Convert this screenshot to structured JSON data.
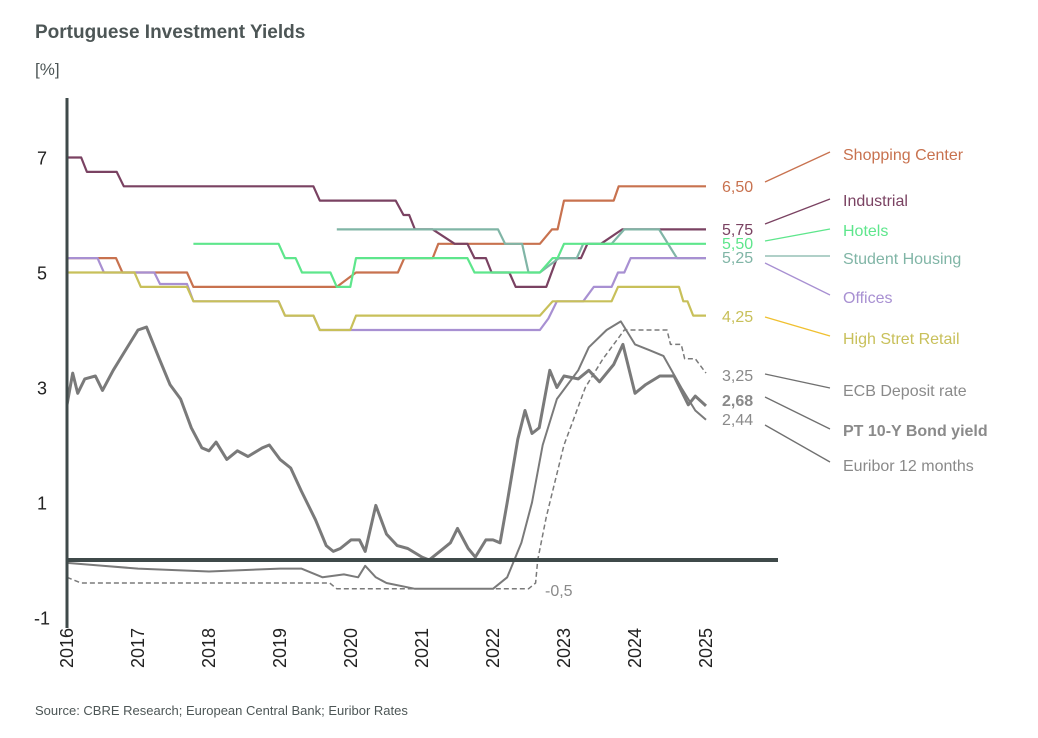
{
  "title": "Portuguese Investment Yields",
  "unit": "[%]",
  "source": "Source: CBRE Research; European Central Bank; Euribor Rates",
  "chart_data": {
    "type": "line",
    "title": "Portuguese Investment Yields",
    "ylabel": "[%]",
    "xlim": [
      2016,
      2025
    ],
    "ylim": [
      -1,
      8
    ],
    "y_ticks": [
      "7",
      "5",
      "3",
      "1",
      "-1"
    ],
    "y_tick_values": [
      7,
      5,
      3,
      1,
      -1
    ],
    "x_ticks": [
      "2016",
      "2017",
      "2018",
      "2019",
      "2020",
      "2021",
      "2022",
      "2023",
      "2024",
      "2025"
    ],
    "grid": false,
    "legend": "right, end-of-line labels",
    "annotation": "-0,5",
    "series": [
      {
        "name": "Shopping Center",
        "end_label": "6,50",
        "color": "#c8724f",
        "style": "solid",
        "points": [
          [
            2016,
            5.25
          ],
          [
            2016.69,
            5.25
          ],
          [
            2016.78,
            5.0
          ],
          [
            2017.69,
            5.0
          ],
          [
            2017.78,
            4.75
          ],
          [
            2019.8,
            4.75
          ],
          [
            2020.07,
            5.0
          ],
          [
            2020.66,
            5.0
          ],
          [
            2020.75,
            5.25
          ],
          [
            2021.15,
            5.25
          ],
          [
            2021.23,
            5.5
          ],
          [
            2022.66,
            5.5
          ],
          [
            2022.83,
            5.75
          ],
          [
            2022.91,
            5.75
          ],
          [
            2023.0,
            6.25
          ],
          [
            2023.7,
            6.25
          ],
          [
            2023.77,
            6.5
          ],
          [
            2025,
            6.5
          ]
        ]
      },
      {
        "name": "Industrial",
        "end_label": "5,75",
        "color": "#7a4262",
        "style": "solid",
        "points": [
          [
            2016,
            7.0
          ],
          [
            2016.2,
            7.0
          ],
          [
            2016.28,
            6.75
          ],
          [
            2016.7,
            6.75
          ],
          [
            2016.8,
            6.5
          ],
          [
            2019.47,
            6.5
          ],
          [
            2019.56,
            6.25
          ],
          [
            2020.63,
            6.25
          ],
          [
            2020.74,
            6.0
          ],
          [
            2020.82,
            6.0
          ],
          [
            2020.9,
            5.75
          ],
          [
            2021.15,
            5.75
          ],
          [
            2021.46,
            5.5
          ],
          [
            2021.64,
            5.5
          ],
          [
            2021.74,
            5.25
          ],
          [
            2021.9,
            5.25
          ],
          [
            2021.98,
            5.0
          ],
          [
            2022.23,
            5.0
          ],
          [
            2022.32,
            4.75
          ],
          [
            2022.75,
            4.75
          ],
          [
            2022.9,
            5.25
          ],
          [
            2023.24,
            5.25
          ],
          [
            2023.33,
            5.5
          ],
          [
            2023.52,
            5.5
          ],
          [
            2023.82,
            5.75
          ],
          [
            2025,
            5.75
          ]
        ]
      },
      {
        "name": "Hotels",
        "end_label": "5,50",
        "color": "#5ee68c",
        "style": "solid",
        "points": [
          [
            2017.78,
            5.5
          ],
          [
            2018.98,
            5.5
          ],
          [
            2019.07,
            5.25
          ],
          [
            2019.22,
            5.25
          ],
          [
            2019.31,
            5.0
          ],
          [
            2019.71,
            5.0
          ],
          [
            2019.8,
            4.75
          ],
          [
            2019.99,
            4.75
          ],
          [
            2020.07,
            5.25
          ],
          [
            2021.64,
            5.25
          ],
          [
            2021.74,
            5.0
          ],
          [
            2022.66,
            5.0
          ],
          [
            2022.84,
            5.25
          ],
          [
            2022.91,
            5.25
          ],
          [
            2023.0,
            5.5
          ],
          [
            2025,
            5.5
          ]
        ]
      },
      {
        "name": "Student Housing",
        "end_label": "5,25",
        "color": "#80b5a6",
        "style": "solid",
        "points": [
          [
            2019.8,
            5.75
          ],
          [
            2022.07,
            5.75
          ],
          [
            2022.17,
            5.5
          ],
          [
            2022.41,
            5.5
          ],
          [
            2022.5,
            5.0
          ],
          [
            2022.66,
            5.0
          ],
          [
            2022.93,
            5.25
          ],
          [
            2023.18,
            5.25
          ],
          [
            2023.27,
            5.5
          ],
          [
            2023.67,
            5.5
          ],
          [
            2023.85,
            5.75
          ],
          [
            2024.34,
            5.75
          ],
          [
            2024.59,
            5.25
          ],
          [
            2025,
            5.25
          ]
        ]
      },
      {
        "name": "Offices",
        "end_label": "",
        "color": "#a890d2",
        "style": "solid",
        "points": [
          [
            2016,
            5.25
          ],
          [
            2016.43,
            5.25
          ],
          [
            2016.52,
            5.0
          ],
          [
            2017.23,
            5.0
          ],
          [
            2017.31,
            4.8
          ],
          [
            2017.69,
            4.8
          ],
          [
            2017.78,
            4.5
          ],
          [
            2018.98,
            4.5
          ],
          [
            2019.07,
            4.25
          ],
          [
            2019.47,
            4.25
          ],
          [
            2019.56,
            4.0
          ],
          [
            2022.66,
            4.0
          ],
          [
            2022.78,
            4.2
          ],
          [
            2022.9,
            4.5
          ],
          [
            2023.27,
            4.5
          ],
          [
            2023.42,
            4.75
          ],
          [
            2023.67,
            4.75
          ],
          [
            2023.76,
            5.0
          ],
          [
            2023.85,
            5.0
          ],
          [
            2023.94,
            5.25
          ],
          [
            2025,
            5.25
          ]
        ]
      },
      {
        "name": "High Stret Retail",
        "end_label": "4,25",
        "color": "#c8c05a",
        "style": "solid",
        "points": [
          [
            2016,
            5.0
          ],
          [
            2016.95,
            5.0
          ],
          [
            2017.04,
            4.75
          ],
          [
            2017.69,
            4.75
          ],
          [
            2017.78,
            4.5
          ],
          [
            2018.98,
            4.5
          ],
          [
            2019.07,
            4.25
          ],
          [
            2019.47,
            4.25
          ],
          [
            2019.56,
            4.0
          ],
          [
            2019.99,
            4.0
          ],
          [
            2020.07,
            4.25
          ],
          [
            2022.66,
            4.25
          ],
          [
            2022.84,
            4.5
          ],
          [
            2023.67,
            4.5
          ],
          [
            2023.76,
            4.75
          ],
          [
            2024.62,
            4.75
          ],
          [
            2024.68,
            4.5
          ],
          [
            2024.74,
            4.5
          ],
          [
            2024.82,
            4.25
          ],
          [
            2025,
            4.25
          ]
        ]
      },
      {
        "name": "ECB Deposit rate",
        "end_label": "3,25",
        "color": "#7a7a7a",
        "style": "dashed",
        "points": [
          [
            2016,
            -0.3
          ],
          [
            2016.2,
            -0.4
          ],
          [
            2019.7,
            -0.4
          ],
          [
            2019.8,
            -0.5
          ],
          [
            2022.5,
            -0.5
          ],
          [
            2022.6,
            -0.4
          ],
          [
            2022.63,
            0
          ],
          [
            2022.75,
            0.75
          ],
          [
            2022.9,
            1.5
          ],
          [
            2023.0,
            2.0
          ],
          [
            2023.15,
            2.5
          ],
          [
            2023.3,
            3.0
          ],
          [
            2023.55,
            3.5
          ],
          [
            2023.7,
            3.75
          ],
          [
            2023.85,
            4.0
          ],
          [
            2024.45,
            4.0
          ],
          [
            2024.5,
            3.75
          ],
          [
            2024.65,
            3.75
          ],
          [
            2024.7,
            3.5
          ],
          [
            2024.85,
            3.5
          ],
          [
            2025,
            3.25
          ]
        ]
      },
      {
        "name": "PT 10-Y Bond yield",
        "end_label": "2,68",
        "color": "#7a7a7a",
        "style": "bold",
        "points": [
          [
            2016,
            2.7
          ],
          [
            2016.08,
            3.25
          ],
          [
            2016.15,
            2.9
          ],
          [
            2016.25,
            3.15
          ],
          [
            2016.4,
            3.2
          ],
          [
            2016.5,
            2.95
          ],
          [
            2016.65,
            3.3
          ],
          [
            2016.8,
            3.6
          ],
          [
            2017.0,
            4.0
          ],
          [
            2017.12,
            4.05
          ],
          [
            2017.3,
            3.5
          ],
          [
            2017.45,
            3.05
          ],
          [
            2017.6,
            2.8
          ],
          [
            2017.75,
            2.3
          ],
          [
            2017.9,
            1.95
          ],
          [
            2018.0,
            1.9
          ],
          [
            2018.1,
            2.05
          ],
          [
            2018.25,
            1.75
          ],
          [
            2018.4,
            1.9
          ],
          [
            2018.55,
            1.8
          ],
          [
            2018.75,
            1.95
          ],
          [
            2018.85,
            2.0
          ],
          [
            2019.0,
            1.75
          ],
          [
            2019.15,
            1.6
          ],
          [
            2019.3,
            1.2
          ],
          [
            2019.5,
            0.7
          ],
          [
            2019.65,
            0.25
          ],
          [
            2019.75,
            0.15
          ],
          [
            2019.85,
            0.2
          ],
          [
            2020.0,
            0.35
          ],
          [
            2020.12,
            0.35
          ],
          [
            2020.2,
            0.15
          ],
          [
            2020.35,
            0.95
          ],
          [
            2020.5,
            0.45
          ],
          [
            2020.65,
            0.25
          ],
          [
            2020.8,
            0.2
          ],
          [
            2021.0,
            0.05
          ],
          [
            2021.1,
            0.0
          ],
          [
            2021.25,
            0.15
          ],
          [
            2021.4,
            0.3
          ],
          [
            2021.5,
            0.55
          ],
          [
            2021.65,
            0.2
          ],
          [
            2021.75,
            0.05
          ],
          [
            2021.9,
            0.35
          ],
          [
            2022.0,
            0.35
          ],
          [
            2022.1,
            0.3
          ],
          [
            2022.2,
            1.0
          ],
          [
            2022.35,
            2.1
          ],
          [
            2022.45,
            2.6
          ],
          [
            2022.55,
            2.2
          ],
          [
            2022.65,
            2.3
          ],
          [
            2022.8,
            3.3
          ],
          [
            2022.9,
            3.0
          ],
          [
            2023.0,
            3.2
          ],
          [
            2023.2,
            3.15
          ],
          [
            2023.35,
            3.3
          ],
          [
            2023.5,
            3.1
          ],
          [
            2023.7,
            3.4
          ],
          [
            2023.83,
            3.75
          ],
          [
            2024.0,
            2.9
          ],
          [
            2024.15,
            3.05
          ],
          [
            2024.35,
            3.2
          ],
          [
            2024.55,
            3.2
          ],
          [
            2024.75,
            2.7
          ],
          [
            2024.85,
            2.85
          ],
          [
            2025,
            2.68
          ]
        ]
      },
      {
        "name": "Euribor 12 months",
        "end_label": "2,44",
        "color": "#7a7a7a",
        "style": "solid",
        "points": [
          [
            2016,
            -0.05
          ],
          [
            2016.5,
            -0.1
          ],
          [
            2017.0,
            -0.15
          ],
          [
            2018.0,
            -0.2
          ],
          [
            2019.0,
            -0.15
          ],
          [
            2019.3,
            -0.15
          ],
          [
            2019.6,
            -0.3
          ],
          [
            2019.9,
            -0.25
          ],
          [
            2020.1,
            -0.3
          ],
          [
            2020.2,
            -0.1
          ],
          [
            2020.35,
            -0.3
          ],
          [
            2020.5,
            -0.4
          ],
          [
            2020.9,
            -0.5
          ],
          [
            2022.0,
            -0.5
          ],
          [
            2022.2,
            -0.3
          ],
          [
            2022.4,
            0.3
          ],
          [
            2022.55,
            1.0
          ],
          [
            2022.7,
            2.0
          ],
          [
            2022.9,
            2.8
          ],
          [
            2023.2,
            3.3
          ],
          [
            2023.35,
            3.7
          ],
          [
            2023.6,
            4.0
          ],
          [
            2023.8,
            4.15
          ],
          [
            2024.0,
            3.75
          ],
          [
            2024.2,
            3.65
          ],
          [
            2024.4,
            3.55
          ],
          [
            2024.65,
            3.0
          ],
          [
            2024.85,
            2.6
          ],
          [
            2025,
            2.44
          ]
        ]
      }
    ]
  }
}
